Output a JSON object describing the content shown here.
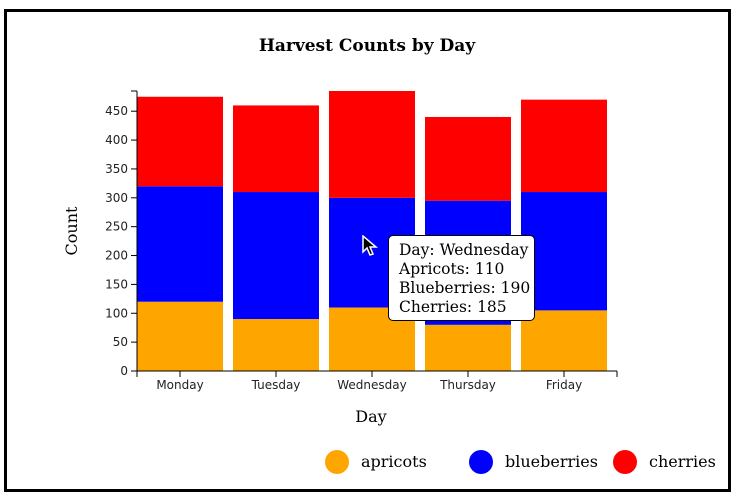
{
  "chart_data": {
    "type": "bar",
    "stacked": true,
    "title": "Harvest Counts by Day",
    "xlabel": "Day",
    "ylabel": "Count",
    "categories": [
      "Monday",
      "Tuesday",
      "Wednesday",
      "Thursday",
      "Friday"
    ],
    "series": [
      {
        "name": "apricots",
        "color": "#ffa500",
        "values": [
          120,
          90,
          110,
          80,
          105
        ]
      },
      {
        "name": "blueberries",
        "color": "#0000ff",
        "values": [
          200,
          220,
          190,
          215,
          205
        ]
      },
      {
        "name": "cherries",
        "color": "#ff0000",
        "values": [
          155,
          150,
          185,
          145,
          160
        ]
      }
    ],
    "ylim": [
      0,
      485
    ],
    "yticks": [
      0,
      50,
      100,
      150,
      200,
      250,
      300,
      350,
      400,
      450
    ],
    "grid": false,
    "legend": "bottom"
  },
  "tooltip": {
    "day": "Day: Wednesday",
    "apricots": "Apricots: 110",
    "blueberries": "Blueberries: 190",
    "cherries": "Cherries: 185"
  }
}
